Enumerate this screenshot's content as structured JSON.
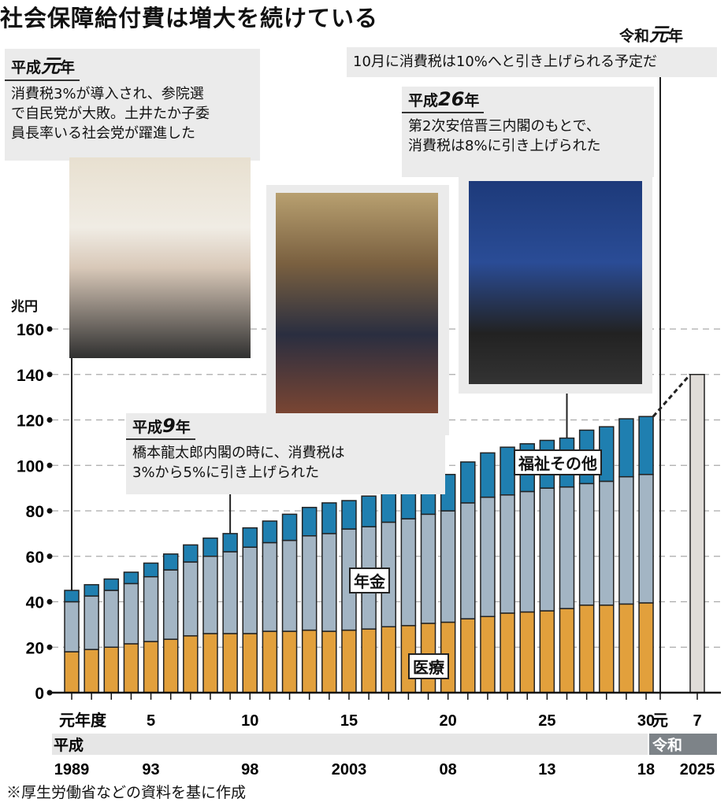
{
  "title": "社会保障給付費は増大を続けている",
  "annotations": {
    "reiwa1": {
      "heading_era": "令和",
      "heading_num": "元",
      "heading_suffix": "年",
      "text": "10月に消費税は10%へと引き上げられる予定だ"
    },
    "heisei1": {
      "heading_era": "平成",
      "heading_num": "元",
      "heading_suffix": "年",
      "lines": [
        "消費税3%が導入され、参院選",
        "で自民党が大敗。土井たか子委",
        "員長率いる社会党が躍進した"
      ]
    },
    "heisei26": {
      "heading_era": "平成",
      "heading_num": "26",
      "heading_suffix": "年",
      "lines": [
        "第2次安倍晋三内閣のもとで、",
        "消費税は8%に引き上げられた"
      ]
    },
    "heisei9": {
      "heading_era": "平成",
      "heading_num": "9",
      "heading_suffix": "年",
      "lines": [
        "橋本龍太郎内閣の時に、消費税は",
        "3%から5%に引き上げられた"
      ]
    }
  },
  "source_note": "※厚生労働省などの資料を基に作成",
  "colors": {
    "medical": "#e2a03c",
    "pension": "#a3b5c4",
    "welfare": "#1f7fb0",
    "projection": "#e0dcd8"
  },
  "chart_data": {
    "type": "bar",
    "stacked": true,
    "title": "社会保障給付費は増大を続けている",
    "ylabel": "兆円",
    "ylim": [
      0,
      160
    ],
    "yticks": [
      0,
      20,
      40,
      60,
      80,
      100,
      120,
      140,
      160
    ],
    "grid": true,
    "x": [
      "1989",
      "1990",
      "1991",
      "1992",
      "1993",
      "1994",
      "1995",
      "1996",
      "1997",
      "1998",
      "1999",
      "2000",
      "2001",
      "2002",
      "2003",
      "2004",
      "2005",
      "2006",
      "2007",
      "2008",
      "2009",
      "2010",
      "2011",
      "2012",
      "2013",
      "2014",
      "2015",
      "2016",
      "2017",
      "2018"
    ],
    "series": [
      {
        "name": "医療",
        "values": [
          18,
          19,
          20,
          21.5,
          22.5,
          23.5,
          25,
          26,
          26,
          26,
          27,
          27,
          27.5,
          27,
          27.5,
          28,
          29,
          29.5,
          30.5,
          31,
          32.5,
          33.5,
          35,
          35.5,
          36,
          37,
          38.5,
          38.5,
          39,
          39.5
        ]
      },
      {
        "name": "年金",
        "values": [
          22,
          23.5,
          25,
          26.5,
          28.5,
          30.5,
          32.5,
          34,
          36,
          38,
          39,
          40,
          41.5,
          43,
          44.5,
          45,
          46,
          47,
          48,
          49,
          51,
          52.5,
          52,
          53,
          54,
          53.5,
          53.5,
          54.5,
          56,
          56.5
        ]
      },
      {
        "name": "福祉その他",
        "values": [
          5,
          5,
          5,
          5,
          6,
          7,
          7.5,
          8,
          8,
          8.5,
          9.5,
          11.5,
          12.5,
          13.5,
          12.5,
          13.5,
          14,
          14.5,
          14.5,
          16,
          18,
          19.5,
          21,
          21,
          21,
          21.5,
          23.5,
          24,
          25.5,
          25.5
        ]
      }
    ],
    "projection": {
      "x": "2025",
      "value": 140
    },
    "x_tick_labels": [
      {
        "idx": 0,
        "text": "元年度"
      },
      {
        "idx": 4,
        "text": "5"
      },
      {
        "idx": 9,
        "text": "10"
      },
      {
        "idx": 14,
        "text": "15"
      },
      {
        "idx": 19,
        "text": "20"
      },
      {
        "idx": 24,
        "text": "25"
      },
      {
        "idx": 29,
        "text": "30"
      },
      {
        "idx": 31,
        "text": "元"
      },
      {
        "idx": 32,
        "text": "7"
      }
    ],
    "eras": [
      "平成",
      "令和"
    ],
    "year_labels": [
      {
        "idx": 0,
        "text": "1989"
      },
      {
        "idx": 4,
        "text": "93"
      },
      {
        "idx": 9,
        "text": "98"
      },
      {
        "idx": 14,
        "text": "2003"
      },
      {
        "idx": 19,
        "text": "08"
      },
      {
        "idx": 24,
        "text": "13"
      },
      {
        "idx": 29,
        "text": "18"
      },
      {
        "idx": 32,
        "text": "2025"
      }
    ]
  }
}
